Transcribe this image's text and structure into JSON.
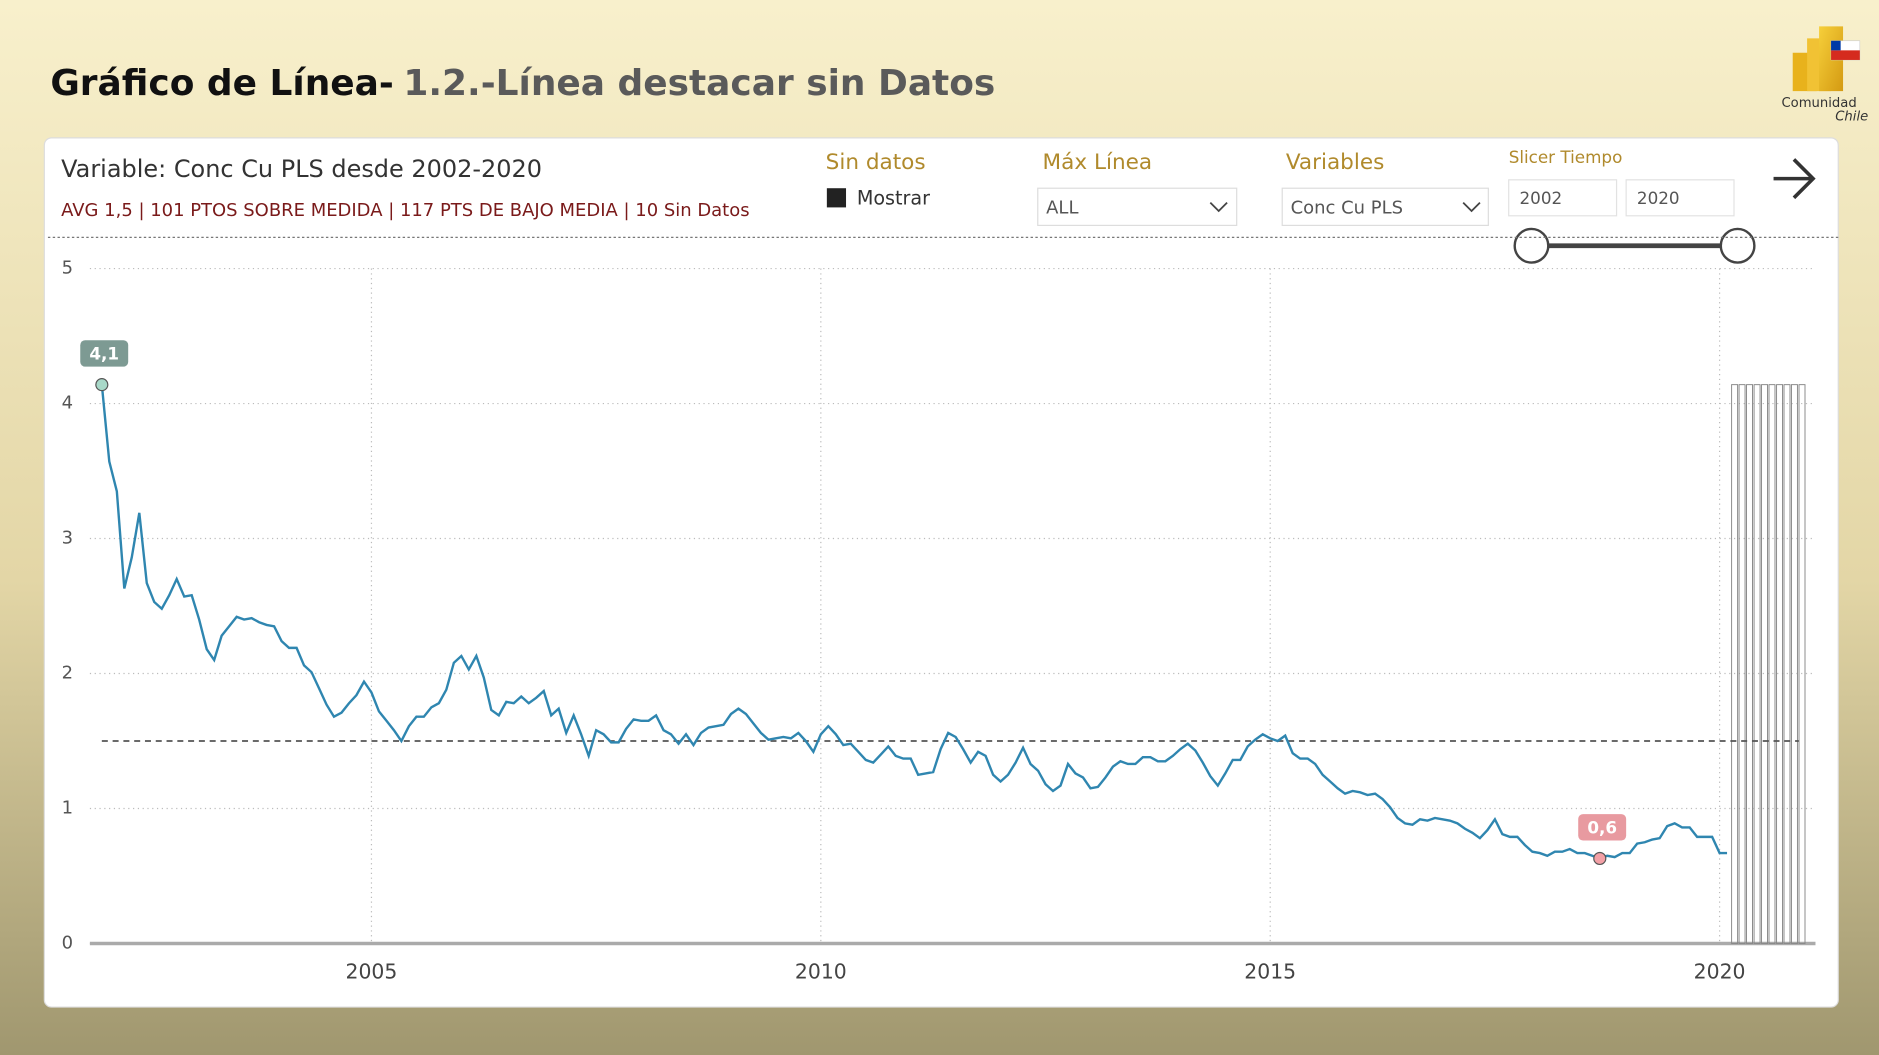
{
  "header": {
    "title_main": "Gráfico de Línea-",
    "title_sub": "1.2.-Línea destacar sin Datos",
    "logo_line1": "Comunidad",
    "logo_line2": "Chile"
  },
  "filters": {
    "sin_datos_title": "Sin datos",
    "sin_datos_option": "Mostrar",
    "max_linea_title": "Máx Línea",
    "max_linea_value": "ALL",
    "variables_title": "Variables",
    "variables_value": "Conc Cu PLS",
    "slicer_title": "Slicer Tiempo",
    "slicer_from": 2002,
    "slicer_to": 2020
  },
  "chart_data": {
    "type": "line",
    "title": "Variable: Conc Cu PLS desde 2002-2020",
    "subtitle": "AVG 1,5 |  101 PTOS SOBRE MEDIDA | 117 PTS DE BAJO MEDIA | 10 Sin Datos",
    "x": [
      2002,
      2002.083,
      2002.167,
      2002.25,
      2002.333,
      2002.417,
      2002.5,
      2002.583,
      2002.667,
      2002.75,
      2002.833,
      2002.917,
      2003,
      2003.083,
      2003.167,
      2003.25,
      2003.333,
      2003.417,
      2003.5,
      2003.583,
      2003.667,
      2003.75,
      2003.833,
      2003.917,
      2004,
      2004.083,
      2004.167,
      2004.25,
      2004.333,
      2004.417,
      2004.5,
      2004.583,
      2004.667,
      2004.75,
      2004.833,
      2004.917,
      2005,
      2005.083,
      2005.167,
      2005.25,
      2005.333,
      2005.417,
      2005.5,
      2005.583,
      2005.667,
      2005.75,
      2005.833,
      2005.917,
      2006,
      2006.083,
      2006.167,
      2006.25,
      2006.333,
      2006.417,
      2006.5,
      2006.583,
      2006.667,
      2006.75,
      2006.833,
      2006.917,
      2007,
      2007.083,
      2007.167,
      2007.25,
      2007.333,
      2007.417,
      2007.5,
      2007.583,
      2007.667,
      2007.75,
      2007.833,
      2007.917,
      2008,
      2008.083,
      2008.167,
      2008.25,
      2008.333,
      2008.417,
      2008.5,
      2008.583,
      2008.667,
      2008.75,
      2008.833,
      2008.917,
      2009,
      2009.083,
      2009.167,
      2009.25,
      2009.333,
      2009.417,
      2009.5,
      2009.583,
      2009.667,
      2009.75,
      2009.833,
      2009.917,
      2010,
      2010.083,
      2010.167,
      2010.25,
      2010.333,
      2010.417,
      2010.5,
      2010.583,
      2010.667,
      2010.75,
      2010.833,
      2010.917,
      2011,
      2011.083,
      2011.167,
      2011.25,
      2011.333,
      2011.417,
      2011.5,
      2011.583,
      2011.667,
      2011.75,
      2011.833,
      2011.917,
      2012,
      2012.083,
      2012.167,
      2012.25,
      2012.333,
      2012.417,
      2012.5,
      2012.583,
      2012.667,
      2012.75,
      2012.833,
      2012.917,
      2013,
      2013.083,
      2013.167,
      2013.25,
      2013.333,
      2013.417,
      2013.5,
      2013.583,
      2013.667,
      2013.75,
      2013.833,
      2013.917,
      2014,
      2014.083,
      2014.167,
      2014.25,
      2014.333,
      2014.417,
      2014.5,
      2014.583,
      2014.667,
      2014.75,
      2014.833,
      2014.917,
      2015,
      2015.083,
      2015.167,
      2015.25,
      2015.333,
      2015.417,
      2015.5,
      2015.583,
      2015.667,
      2015.75,
      2015.833,
      2015.917,
      2016,
      2016.083,
      2016.167,
      2016.25,
      2016.333,
      2016.417,
      2016.5,
      2016.583,
      2016.667,
      2016.75,
      2016.833,
      2016.917,
      2017,
      2017.083,
      2017.167,
      2017.25,
      2017.333,
      2017.417,
      2017.5,
      2017.583,
      2017.667,
      2017.75,
      2017.833,
      2017.917,
      2018,
      2018.083,
      2018.167,
      2018.25,
      2018.333,
      2018.417,
      2018.5,
      2018.583,
      2018.667,
      2018.75,
      2018.833,
      2018.917,
      2019,
      2019.083,
      2019.167,
      2019.25,
      2019.333,
      2019.417,
      2019.5,
      2019.583,
      2019.667,
      2019.75,
      2019.833,
      2019.917,
      2020,
      2020.083
    ],
    "series": [
      {
        "name": "Conc Cu PLS",
        "color": "#2f86b0",
        "values": [
          4.14,
          3.57,
          3.35,
          2.63,
          2.86,
          3.19,
          2.67,
          2.53,
          2.48,
          2.58,
          2.7,
          2.57,
          2.58,
          2.4,
          2.18,
          2.1,
          2.28,
          2.35,
          2.42,
          2.4,
          2.41,
          2.38,
          2.36,
          2.35,
          2.24,
          2.19,
          2.19,
          2.06,
          2.01,
          1.89,
          1.77,
          1.68,
          1.71,
          1.78,
          1.84,
          1.94,
          1.86,
          1.72,
          1.65,
          1.58,
          1.5,
          1.61,
          1.68,
          1.68,
          1.75,
          1.78,
          1.88,
          2.08,
          2.13,
          2.03,
          2.13,
          1.97,
          1.73,
          1.69,
          1.79,
          1.78,
          1.83,
          1.78,
          1.82,
          1.87,
          1.69,
          1.74,
          1.56,
          1.69,
          1.55,
          1.39,
          1.58,
          1.55,
          1.49,
          1.49,
          1.59,
          1.66,
          1.65,
          1.65,
          1.69,
          1.58,
          1.55,
          1.48,
          1.55,
          1.47,
          1.56,
          1.6,
          1.61,
          1.62,
          1.7,
          1.74,
          1.7,
          1.63,
          1.56,
          1.51,
          1.52,
          1.53,
          1.52,
          1.56,
          1.5,
          1.42,
          1.55,
          1.61,
          1.55,
          1.47,
          1.48,
          1.42,
          1.36,
          1.34,
          1.4,
          1.46,
          1.39,
          1.37,
          1.37,
          1.25,
          1.26,
          1.27,
          1.44,
          1.56,
          1.53,
          1.44,
          1.34,
          1.42,
          1.39,
          1.25,
          1.2,
          1.25,
          1.34,
          1.45,
          1.33,
          1.28,
          1.18,
          1.13,
          1.17,
          1.33,
          1.26,
          1.23,
          1.15,
          1.16,
          1.23,
          1.31,
          1.35,
          1.33,
          1.33,
          1.38,
          1.38,
          1.35,
          1.35,
          1.39,
          1.44,
          1.48,
          1.43,
          1.34,
          1.24,
          1.17,
          1.26,
          1.36,
          1.36,
          1.46,
          1.51,
          1.55,
          1.52,
          1.5,
          1.54,
          1.41,
          1.37,
          1.37,
          1.33,
          1.25,
          1.2,
          1.15,
          1.11,
          1.13,
          1.12,
          1.1,
          1.11,
          1.07,
          1.01,
          0.93,
          0.89,
          0.88,
          0.92,
          0.91,
          0.93,
          0.92,
          0.91,
          0.89,
          0.85,
          0.82,
          0.78,
          0.84,
          0.92,
          0.81,
          0.79,
          0.79,
          0.73,
          0.68,
          0.67,
          0.65,
          0.68,
          0.68,
          0.7,
          0.67,
          0.67,
          0.65,
          0.63,
          0.65,
          0.64,
          0.67,
          0.67,
          0.74,
          0.75,
          0.77,
          0.78,
          0.87,
          0.89,
          0.86,
          0.86,
          0.79,
          0.79,
          0.79,
          0.67,
          0.67
        ]
      }
    ],
    "average": 1.5,
    "highlights": [
      {
        "x": 2002,
        "value": 4.14,
        "label": "4,1",
        "color": "#7d9a93",
        "marker": "#a8d8c8"
      },
      {
        "x": 2018.667,
        "value": 0.63,
        "label": "0,6",
        "color": "#e89aa0",
        "marker": "#f3a0a6"
      }
    ],
    "no_data_x": [
      2020.167,
      2020.25,
      2020.333,
      2020.417,
      2020.5,
      2020.583,
      2020.667,
      2020.75,
      2020.833,
      2020.917
    ],
    "xlim": [
      2001.867,
      2021.067
    ],
    "xticks": [
      2005,
      2010,
      2015,
      2020
    ],
    "ylim": [
      0,
      5
    ],
    "yticks": [
      0,
      1,
      2,
      3,
      4,
      5
    ],
    "grid": true
  }
}
